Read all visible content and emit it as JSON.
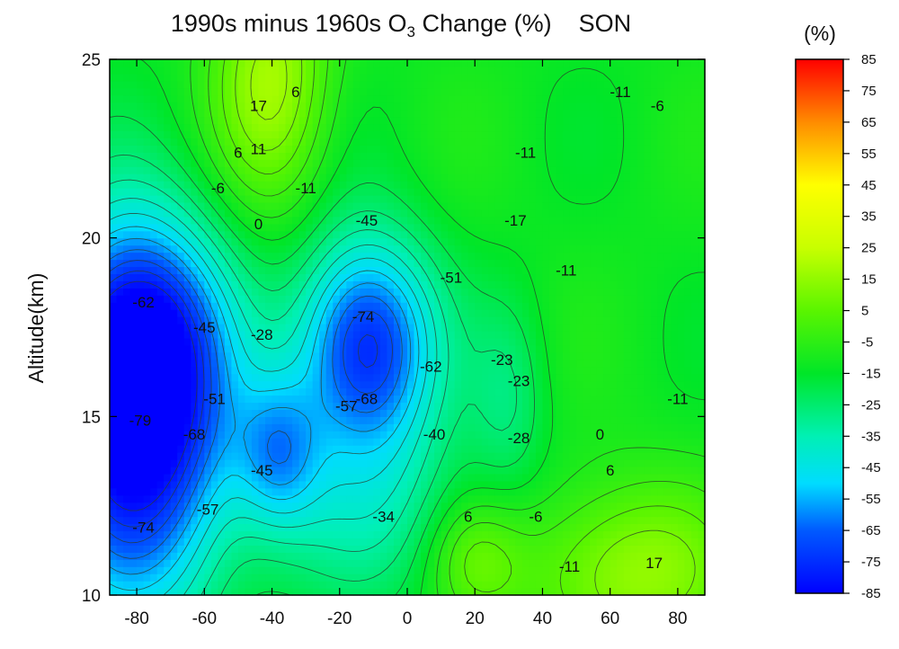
{
  "chart_data": {
    "type": "heatmap",
    "title": {
      "prefix": "1990s minus 1960s O",
      "subscript": "3",
      "suffix": " Change (%)",
      "season": "SON"
    },
    "xlabel": "",
    "ylabel": "Altitude(km)",
    "xlim": [
      -88,
      88
    ],
    "ylim": [
      10,
      25
    ],
    "x_ticks": [
      -80,
      -60,
      -40,
      -20,
      0,
      20,
      40,
      60,
      80
    ],
    "y_ticks": [
      10,
      15,
      20,
      25
    ],
    "colorbar": {
      "title": "(%)",
      "range": [
        -85,
        85
      ],
      "ticks": [
        85,
        75,
        65,
        55,
        45,
        35,
        25,
        15,
        5,
        -5,
        -15,
        -25,
        -35,
        -45,
        -55,
        -65,
        -75,
        -85
      ],
      "colors": [
        "#0000ff",
        "#00b4ff",
        "#00ffff",
        "#00ff00",
        "#ffff00",
        "#ff8c00",
        "#ff0000",
        "#ffffff"
      ]
    },
    "features": [
      {
        "lat": -80,
        "alt": 14.3,
        "value": -80,
        "sx": 20,
        "sy": 3.6
      },
      {
        "lat": -80,
        "alt": 17.2,
        "value": -60,
        "sx": 17,
        "sy": 2.4
      },
      {
        "lat": -12,
        "alt": 17.0,
        "value": -77,
        "sx": 14,
        "sy": 2.1
      },
      {
        "lat": -38,
        "alt": 14.0,
        "value": -45,
        "sx": 9,
        "sy": 1.5
      },
      {
        "lat": -10,
        "alt": 12.5,
        "value": -30,
        "sx": 22,
        "sy": 2.0
      },
      {
        "lat": -40,
        "alt": 24.5,
        "value": 18,
        "sx": 12,
        "sy": 2.5
      },
      {
        "lat": 65,
        "alt": 10.6,
        "value": 16,
        "sx": 22,
        "sy": 1.8
      },
      {
        "lat": 20,
        "alt": 11.0,
        "value": 5,
        "sx": 10,
        "sy": 1.2
      },
      {
        "lat": 30,
        "alt": 15.5,
        "value": -25,
        "sx": 8,
        "sy": 2.0
      }
    ],
    "contour_labels": [
      {
        "text": "17",
        "lat": -44,
        "alt": 23.7
      },
      {
        "text": "6",
        "lat": -33,
        "alt": 24.1
      },
      {
        "text": "6",
        "lat": -50,
        "alt": 22.4
      },
      {
        "text": "11",
        "lat": -44,
        "alt": 22.5
      },
      {
        "text": "-6",
        "lat": -56,
        "alt": 21.4
      },
      {
        "text": "-11",
        "lat": -30,
        "alt": 21.4
      },
      {
        "text": "0",
        "lat": -44,
        "alt": 20.4
      },
      {
        "text": "-45",
        "lat": -12,
        "alt": 20.5
      },
      {
        "text": "-51",
        "lat": 13,
        "alt": 18.9
      },
      {
        "text": "-62",
        "lat": -78,
        "alt": 18.2
      },
      {
        "text": "-74",
        "lat": -13,
        "alt": 17.8
      },
      {
        "text": "-45",
        "lat": -60,
        "alt": 17.5
      },
      {
        "text": "-28",
        "lat": -43,
        "alt": 17.3
      },
      {
        "text": "-62",
        "lat": 7,
        "alt": 16.4
      },
      {
        "text": "-23",
        "lat": 28,
        "alt": 16.6
      },
      {
        "text": "-23",
        "lat": 33,
        "alt": 16.0
      },
      {
        "text": "-51",
        "lat": -57,
        "alt": 15.5
      },
      {
        "text": "-68",
        "lat": -12,
        "alt": 15.5
      },
      {
        "text": "-57",
        "lat": -18,
        "alt": 15.3
      },
      {
        "text": "-79",
        "lat": -79,
        "alt": 14.9
      },
      {
        "text": "-68",
        "lat": -63,
        "alt": 14.5
      },
      {
        "text": "-40",
        "lat": 8,
        "alt": 14.5
      },
      {
        "text": "-28",
        "lat": 33,
        "alt": 14.4
      },
      {
        "text": "0",
        "lat": 57,
        "alt": 14.5
      },
      {
        "text": "-45",
        "lat": -43,
        "alt": 13.5
      },
      {
        "text": "6",
        "lat": 60,
        "alt": 13.5
      },
      {
        "text": "-57",
        "lat": -59,
        "alt": 12.4
      },
      {
        "text": "-34",
        "lat": -7,
        "alt": 12.2
      },
      {
        "text": "6",
        "lat": 18,
        "alt": 12.2
      },
      {
        "text": "-6",
        "lat": 38,
        "alt": 12.2
      },
      {
        "text": "-74",
        "lat": -78,
        "alt": 11.9
      },
      {
        "text": "-11",
        "lat": 48,
        "alt": 10.8
      },
      {
        "text": "17",
        "lat": 73,
        "alt": 10.9
      },
      {
        "text": "-11",
        "lat": 63,
        "alt": 24.1
      },
      {
        "text": "-6",
        "lat": 74,
        "alt": 23.7
      },
      {
        "text": "-11",
        "lat": 35,
        "alt": 22.4
      },
      {
        "text": "-17",
        "lat": 32,
        "alt": 20.5
      },
      {
        "text": "-11",
        "lat": 47,
        "alt": 19.1
      },
      {
        "text": "-11",
        "lat": 80,
        "alt": 15.5
      }
    ]
  }
}
